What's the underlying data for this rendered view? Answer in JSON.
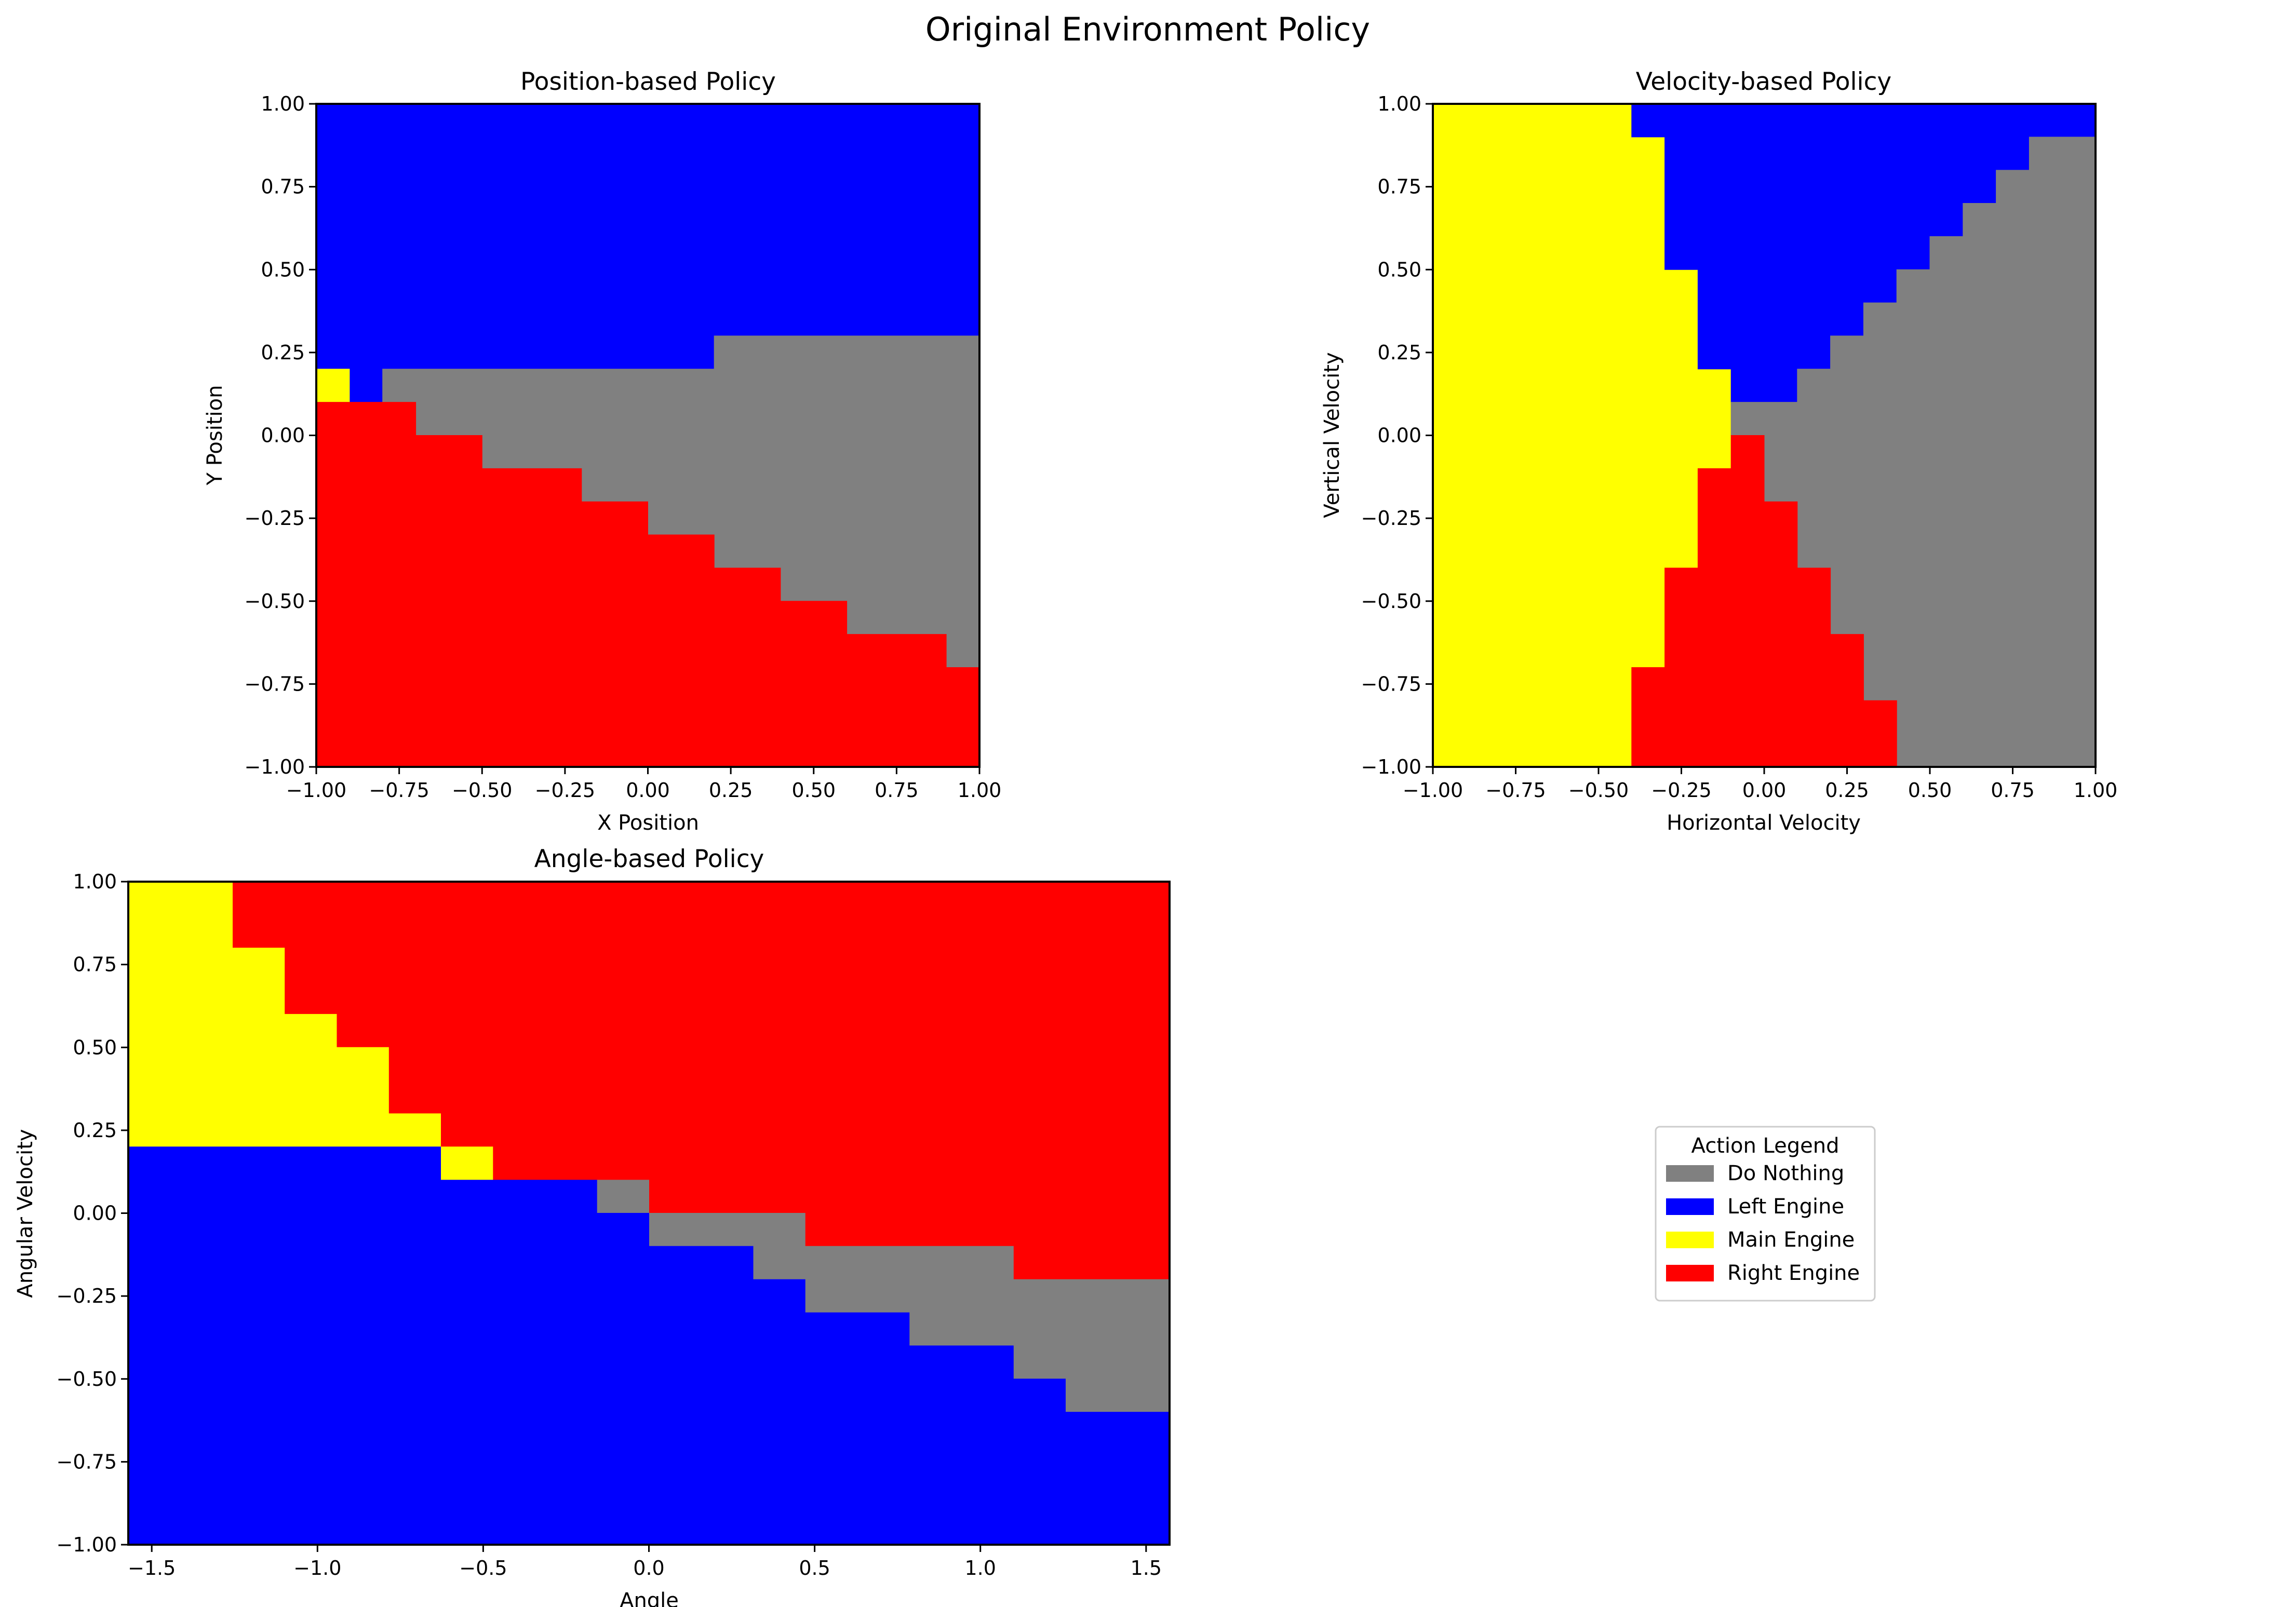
{
  "figure": {
    "suptitle": "Original Environment Policy"
  },
  "legend": {
    "title": "Action Legend",
    "placement": "center of empty bottom-right panel",
    "entries": [
      {
        "label": "Do Nothing",
        "color": "#808080"
      },
      {
        "label": "Left Engine",
        "color": "#0000ff"
      },
      {
        "label": "Main Engine",
        "color": "#ffff00"
      },
      {
        "label": "Right Engine",
        "color": "#ff0000"
      }
    ]
  },
  "chart_data": [
    {
      "type": "heatmap",
      "title": "Position-based Policy",
      "xlabel": "X Position",
      "ylabel": "Y Position",
      "xlim": [
        -1,
        1
      ],
      "ylim": [
        -1,
        1
      ],
      "grid": false,
      "xticks": [
        "−1.00",
        "−0.75",
        "−0.50",
        "−0.25",
        "0.00",
        "0.25",
        "0.50",
        "0.75",
        "1.00"
      ],
      "yticks": [
        "−1.00",
        "−0.75",
        "−0.50",
        "−0.25",
        "0.00",
        "0.25",
        "0.50",
        "0.75",
        "1.00"
      ],
      "action_colors": {
        "0": "#808080",
        "1": "#0000ff",
        "2": "#ffff00",
        "3": "#ff0000"
      },
      "regions": [
        {
          "action": 1,
          "points": [
            [
              -1,
              1
            ],
            [
              1,
              1
            ],
            [
              1,
              0.3
            ],
            [
              0.2,
              0.3
            ],
            [
              0.2,
              0.2
            ],
            [
              -1,
              0.2
            ]
          ]
        },
        {
          "action": 1,
          "points": [
            [
              -0.9,
              0.2
            ],
            [
              -0.8,
              0.2
            ],
            [
              -0.8,
              0.1
            ],
            [
              -0.9,
              0.1
            ]
          ]
        },
        {
          "action": 2,
          "points": [
            [
              -1,
              0.2
            ],
            [
              -0.9,
              0.2
            ],
            [
              -0.9,
              0.1
            ],
            [
              -1,
              0.1
            ]
          ]
        },
        {
          "action": 0,
          "points": [
            [
              -0.8,
              0.2
            ],
            [
              0.2,
              0.2
            ],
            [
              0.2,
              0.3
            ],
            [
              1,
              0.3
            ],
            [
              1,
              -0.7
            ],
            [
              0.9,
              -0.7
            ],
            [
              0.9,
              -0.6
            ],
            [
              0.6,
              -0.6
            ],
            [
              0.6,
              -0.5
            ],
            [
              0.4,
              -0.5
            ],
            [
              0.4,
              -0.4
            ],
            [
              0.2,
              -0.4
            ],
            [
              0.2,
              -0.3
            ],
            [
              0,
              -0.3
            ],
            [
              0,
              -0.2
            ],
            [
              -0.2,
              -0.2
            ],
            [
              -0.2,
              -0.1
            ],
            [
              -0.5,
              -0.1
            ],
            [
              -0.5,
              0
            ],
            [
              -0.7,
              0
            ],
            [
              -0.7,
              0.1
            ],
            [
              -0.8,
              0.1
            ]
          ]
        },
        {
          "action": 3,
          "points": [
            [
              -1,
              0.1
            ],
            [
              -0.7,
              0.1
            ],
            [
              -0.7,
              0
            ],
            [
              -0.5,
              0
            ],
            [
              -0.5,
              -0.1
            ],
            [
              -0.2,
              -0.1
            ],
            [
              -0.2,
              -0.2
            ],
            [
              0,
              -0.2
            ],
            [
              0,
              -0.3
            ],
            [
              0.2,
              -0.3
            ],
            [
              0.2,
              -0.4
            ],
            [
              0.4,
              -0.4
            ],
            [
              0.4,
              -0.5
            ],
            [
              0.6,
              -0.5
            ],
            [
              0.6,
              -0.6
            ],
            [
              0.9,
              -0.6
            ],
            [
              0.9,
              -0.7
            ],
            [
              1,
              -0.7
            ],
            [
              1,
              -1
            ],
            [
              -1,
              -1
            ]
          ]
        }
      ]
    },
    {
      "type": "heatmap",
      "title": "Velocity-based Policy",
      "xlabel": "Horizontal Velocity",
      "ylabel": "Vertical Velocity",
      "xlim": [
        -1,
        1
      ],
      "ylim": [
        -1,
        1
      ],
      "grid": false,
      "xticks": [
        "−1.00",
        "−0.75",
        "−0.50",
        "−0.25",
        "0.00",
        "0.25",
        "0.50",
        "0.75",
        "1.00"
      ],
      "yticks": [
        "−1.00",
        "−0.75",
        "−0.50",
        "−0.25",
        "0.00",
        "0.25",
        "0.50",
        "0.75",
        "1.00"
      ],
      "action_colors": {
        "0": "#808080",
        "1": "#0000ff",
        "2": "#ffff00",
        "3": "#ff0000"
      },
      "regions": [
        {
          "action": 2,
          "points": [
            [
              -1,
              1
            ],
            [
              -0.4,
              1
            ],
            [
              -0.4,
              0.9
            ],
            [
              -0.3,
              0.9
            ],
            [
              -0.3,
              0.5
            ],
            [
              -0.2,
              0.5
            ],
            [
              -0.2,
              0.2
            ],
            [
              -0.1,
              0.2
            ],
            [
              -0.1,
              -0.1
            ],
            [
              -0.2,
              -0.1
            ],
            [
              -0.2,
              -0.4
            ],
            [
              -0.3,
              -0.4
            ],
            [
              -0.3,
              -0.7
            ],
            [
              -0.4,
              -0.7
            ],
            [
              -0.4,
              -1
            ],
            [
              -1,
              -1
            ]
          ]
        },
        {
          "action": 1,
          "points": [
            [
              -0.4,
              1
            ],
            [
              1,
              1
            ],
            [
              1,
              0.9
            ],
            [
              0.8,
              0.9
            ],
            [
              0.8,
              0.8
            ],
            [
              0.7,
              0.8
            ],
            [
              0.7,
              0.7
            ],
            [
              0.6,
              0.7
            ],
            [
              0.6,
              0.6
            ],
            [
              0.5,
              0.6
            ],
            [
              0.5,
              0.5
            ],
            [
              0.4,
              0.5
            ],
            [
              0.4,
              0.4
            ],
            [
              0.3,
              0.4
            ],
            [
              0.3,
              0.3
            ],
            [
              0.2,
              0.3
            ],
            [
              0.2,
              0.2
            ],
            [
              0.1,
              0.2
            ],
            [
              0.1,
              0.1
            ],
            [
              -0.1,
              0.1
            ],
            [
              -0.1,
              0.2
            ],
            [
              -0.2,
              0.2
            ],
            [
              -0.2,
              0.5
            ],
            [
              -0.3,
              0.5
            ],
            [
              -0.3,
              0.9
            ],
            [
              -0.4,
              0.9
            ]
          ]
        },
        {
          "action": 0,
          "points": [
            [
              1,
              0.9
            ],
            [
              1,
              -1
            ],
            [
              0.4,
              -1
            ],
            [
              0.4,
              -0.8
            ],
            [
              0.3,
              -0.8
            ],
            [
              0.3,
              -0.6
            ],
            [
              0.2,
              -0.6
            ],
            [
              0.2,
              -0.4
            ],
            [
              0.1,
              -0.4
            ],
            [
              0.1,
              -0.2
            ],
            [
              0,
              -0.2
            ],
            [
              0,
              0
            ],
            [
              -0.1,
              0
            ],
            [
              -0.1,
              0.1
            ],
            [
              0.1,
              0.1
            ],
            [
              0.1,
              0.2
            ],
            [
              0.2,
              0.2
            ],
            [
              0.2,
              0.3
            ],
            [
              0.3,
              0.3
            ],
            [
              0.3,
              0.4
            ],
            [
              0.4,
              0.4
            ],
            [
              0.4,
              0.5
            ],
            [
              0.5,
              0.5
            ],
            [
              0.5,
              0.6
            ],
            [
              0.6,
              0.6
            ],
            [
              0.6,
              0.7
            ],
            [
              0.7,
              0.7
            ],
            [
              0.7,
              0.8
            ],
            [
              0.8,
              0.8
            ],
            [
              0.8,
              0.9
            ]
          ]
        },
        {
          "action": 3,
          "points": [
            [
              -0.1,
              0
            ],
            [
              0,
              0
            ],
            [
              0,
              -0.2
            ],
            [
              0.1,
              -0.2
            ],
            [
              0.1,
              -0.4
            ],
            [
              0.2,
              -0.4
            ],
            [
              0.2,
              -0.6
            ],
            [
              0.3,
              -0.6
            ],
            [
              0.3,
              -0.8
            ],
            [
              0.4,
              -0.8
            ],
            [
              0.4,
              -1
            ],
            [
              -0.4,
              -1
            ],
            [
              -0.4,
              -0.7
            ],
            [
              -0.3,
              -0.7
            ],
            [
              -0.3,
              -0.4
            ],
            [
              -0.2,
              -0.4
            ],
            [
              -0.2,
              -0.1
            ],
            [
              -0.1,
              -0.1
            ]
          ]
        }
      ]
    },
    {
      "type": "heatmap",
      "title": "Angle-based Policy",
      "xlabel": "Angle",
      "ylabel": "Angular Velocity",
      "xlim": [
        -1.5708,
        1.5708
      ],
      "ylim": [
        -1,
        1
      ],
      "grid": false,
      "xticks": [
        "−1.5",
        "−1.0",
        "−0.5",
        "0.0",
        "0.5",
        "1.0",
        "1.5"
      ],
      "yticks": [
        "−1.00",
        "−0.75",
        "−0.50",
        "−0.25",
        "0.00",
        "0.25",
        "0.50",
        "0.75",
        "1.00"
      ],
      "action_colors": {
        "0": "#808080",
        "1": "#0000ff",
        "2": "#ffff00",
        "3": "#ff0000"
      },
      "regions": [
        {
          "action": 3,
          "points": [
            [
              -1.2566,
              1
            ],
            [
              1.5708,
              1
            ],
            [
              1.5708,
              -0.2
            ],
            [
              1.0996,
              -0.2
            ],
            [
              1.0996,
              -0.1
            ],
            [
              0.4712,
              -0.1
            ],
            [
              0.4712,
              0
            ],
            [
              0,
              0
            ],
            [
              0,
              0.1
            ],
            [
              -0.4712,
              0.1
            ],
            [
              -0.4712,
              0.2
            ],
            [
              -0.6283,
              0.2
            ],
            [
              -0.6283,
              0.3
            ],
            [
              -0.7854,
              0.3
            ],
            [
              -0.7854,
              0.5
            ],
            [
              -0.9425,
              0.5
            ],
            [
              -0.9425,
              0.6
            ],
            [
              -1.0996,
              0.6
            ],
            [
              -1.0996,
              0.8
            ],
            [
              -1.2566,
              0.8
            ]
          ]
        },
        {
          "action": 2,
          "points": [
            [
              -1.5708,
              1
            ],
            [
              -1.2566,
              1
            ],
            [
              -1.2566,
              0.8
            ],
            [
              -1.0996,
              0.8
            ],
            [
              -1.0996,
              0.6
            ],
            [
              -0.9425,
              0.6
            ],
            [
              -0.9425,
              0.5
            ],
            [
              -0.7854,
              0.5
            ],
            [
              -0.7854,
              0.3
            ],
            [
              -0.6283,
              0.3
            ],
            [
              -0.6283,
              0.2
            ],
            [
              -1.5708,
              0.2
            ]
          ]
        },
        {
          "action": 2,
          "points": [
            [
              -0.6283,
              0.2
            ],
            [
              -0.4712,
              0.2
            ],
            [
              -0.4712,
              0.1
            ],
            [
              -0.6283,
              0.1
            ]
          ]
        },
        {
          "action": 0,
          "points": [
            [
              -0.1571,
              0.1
            ],
            [
              0,
              0.1
            ],
            [
              0,
              0
            ],
            [
              -0.1571,
              0
            ]
          ]
        },
        {
          "action": 0,
          "points": [
            [
              0,
              0
            ],
            [
              0.4712,
              0
            ],
            [
              0.4712,
              -0.1
            ],
            [
              1.0996,
              -0.1
            ],
            [
              1.0996,
              -0.2
            ],
            [
              1.5708,
              -0.2
            ],
            [
              1.5708,
              -0.6
            ],
            [
              1.2566,
              -0.6
            ],
            [
              1.2566,
              -0.5
            ],
            [
              1.0996,
              -0.5
            ],
            [
              1.0996,
              -0.4
            ],
            [
              0.7854,
              -0.4
            ],
            [
              0.7854,
              -0.3
            ],
            [
              0.4712,
              -0.3
            ],
            [
              0.4712,
              -0.2
            ],
            [
              0.3142,
              -0.2
            ],
            [
              0.3142,
              -0.1
            ],
            [
              0,
              -0.1
            ]
          ]
        },
        {
          "action": 1,
          "points": [
            [
              -1.5708,
              0.2
            ],
            [
              -0.6283,
              0.2
            ],
            [
              -0.6283,
              0.1
            ],
            [
              -0.1571,
              0.1
            ],
            [
              -0.1571,
              0
            ],
            [
              0,
              0
            ],
            [
              0,
              -0.1
            ],
            [
              0.3142,
              -0.1
            ],
            [
              0.3142,
              -0.2
            ],
            [
              0.4712,
              -0.2
            ],
            [
              0.4712,
              -0.3
            ],
            [
              0.7854,
              -0.3
            ],
            [
              0.7854,
              -0.4
            ],
            [
              1.0996,
              -0.4
            ],
            [
              1.0996,
              -0.5
            ],
            [
              1.2566,
              -0.5
            ],
            [
              1.2566,
              -0.6
            ],
            [
              1.5708,
              -0.6
            ],
            [
              1.5708,
              -1
            ],
            [
              -1.5708,
              -1
            ]
          ]
        }
      ]
    }
  ]
}
